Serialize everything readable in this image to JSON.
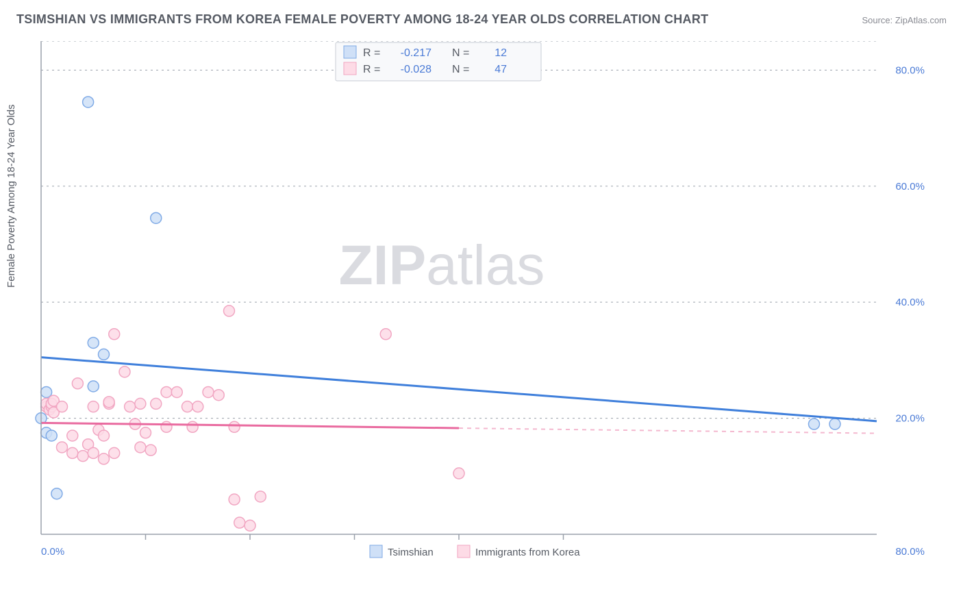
{
  "title": "TSIMSHIAN VS IMMIGRANTS FROM KOREA FEMALE POVERTY AMONG 18-24 YEAR OLDS CORRELATION CHART",
  "source": "Source: ZipAtlas.com",
  "ylabel": "Female Poverty Among 18-24 Year Olds",
  "watermark_a": "ZIP",
  "watermark_b": "atlas",
  "chart": {
    "type": "scatter",
    "xlim": [
      0,
      80
    ],
    "ylim": [
      0,
      85
    ],
    "x_label_min": "0.0%",
    "x_label_max": "80.0%",
    "y_ticks": [
      20,
      40,
      60,
      80
    ],
    "y_tick_labels": [
      "20.0%",
      "40.0%",
      "60.0%",
      "80.0%"
    ],
    "x_minor_ticks": [
      10,
      20,
      30,
      40,
      50
    ],
    "background_color": "#ffffff",
    "grid_color": "#9aa0ab",
    "series": [
      {
        "name": "Tsimshian",
        "color_fill": "#cfe0f7",
        "color_stroke": "#7faae6",
        "marker_radius": 8,
        "points": [
          [
            0,
            20
          ],
          [
            0.5,
            24.5
          ],
          [
            0.5,
            17.5
          ],
          [
            1,
            17
          ],
          [
            1.5,
            7
          ],
          [
            4.5,
            74.5
          ],
          [
            5,
            33
          ],
          [
            5,
            25.5
          ],
          [
            6,
            31
          ],
          [
            11,
            54.5
          ],
          [
            74,
            19
          ],
          [
            76,
            19
          ]
        ],
        "trend": {
          "x1": 0,
          "y1": 30.5,
          "x2": 80,
          "y2": 19.5
        },
        "R": "-0.217",
        "N": "12"
      },
      {
        "name": "Immigrants from Korea",
        "color_fill": "#fddbe6",
        "color_stroke": "#f1a6c2",
        "marker_radius": 8,
        "points": [
          [
            0.5,
            22
          ],
          [
            0.5,
            22.5
          ],
          [
            0.8,
            21.5
          ],
          [
            1,
            22
          ],
          [
            1,
            22.5
          ],
          [
            1.2,
            23
          ],
          [
            1.2,
            21
          ],
          [
            2,
            15
          ],
          [
            2,
            22
          ],
          [
            3,
            14
          ],
          [
            3,
            17
          ],
          [
            3.5,
            26
          ],
          [
            4,
            13.5
          ],
          [
            4.5,
            15.5
          ],
          [
            5,
            22
          ],
          [
            5,
            14
          ],
          [
            5.5,
            18
          ],
          [
            6,
            13
          ],
          [
            6,
            17
          ],
          [
            6.5,
            22.5
          ],
          [
            6.5,
            22.8
          ],
          [
            7,
            34.5
          ],
          [
            7,
            14
          ],
          [
            8,
            28
          ],
          [
            8.5,
            22
          ],
          [
            9,
            19
          ],
          [
            9.5,
            22.5
          ],
          [
            9.5,
            15
          ],
          [
            10,
            17.5
          ],
          [
            10.5,
            14.5
          ],
          [
            11,
            22.5
          ],
          [
            12,
            24.5
          ],
          [
            12,
            18.5
          ],
          [
            13,
            24.5
          ],
          [
            14,
            22
          ],
          [
            14.5,
            18.5
          ],
          [
            15,
            22
          ],
          [
            16,
            24.5
          ],
          [
            17,
            24
          ],
          [
            18,
            38.5
          ],
          [
            18.5,
            6
          ],
          [
            18.5,
            18.5
          ],
          [
            19,
            2
          ],
          [
            20,
            1.5
          ],
          [
            21,
            6.5
          ],
          [
            33,
            34.5
          ],
          [
            40,
            10.5
          ]
        ],
        "trend": {
          "x1": 0,
          "y1": 19.2,
          "x2": 40,
          "y2": 18.3,
          "x2_ext": 80,
          "y2_ext": 17.4
        },
        "R": "-0.028",
        "N": "47"
      }
    ]
  },
  "legend_top": {
    "r_label": "R  =",
    "n_label": "N  ="
  },
  "legend_bottom": [
    {
      "label": "Tsimshian",
      "fill": "#cfe0f7",
      "stroke": "#7faae6"
    },
    {
      "label": "Immigrants from Korea",
      "fill": "#fddbe6",
      "stroke": "#f1a6c2"
    }
  ]
}
